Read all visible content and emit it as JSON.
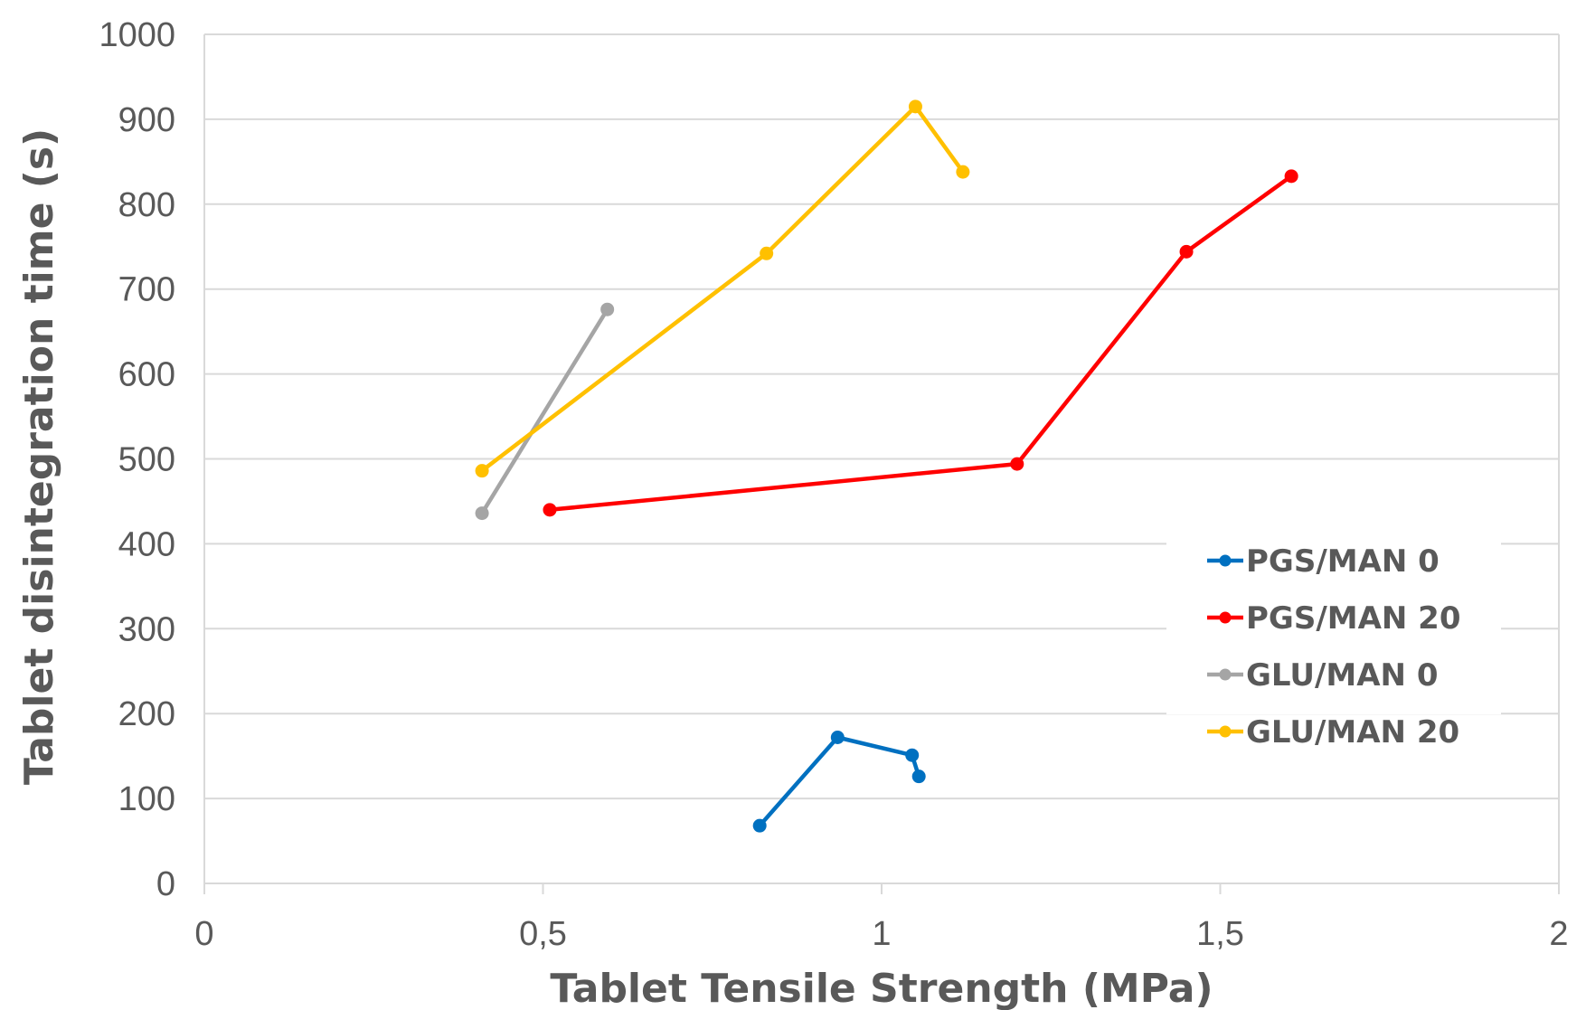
{
  "chart_data": {
    "type": "line",
    "title": "",
    "xlabel": "Tablet Tensile Strength (MPa)",
    "ylabel": "Tablet disintegration time  (s)",
    "xlim": [
      0,
      2
    ],
    "ylim": [
      0,
      1000
    ],
    "xticks": [
      0,
      0.5,
      1,
      1.5,
      2
    ],
    "xtick_labels": [
      "0",
      "0,5",
      "1",
      "1,5",
      "2"
    ],
    "yticks": [
      0,
      100,
      200,
      300,
      400,
      500,
      600,
      700,
      800,
      900,
      1000
    ],
    "ytick_labels": [
      "0",
      "100",
      "200",
      "300",
      "400",
      "500",
      "600",
      "700",
      "800",
      "900",
      "1000"
    ],
    "grid": "horizontal",
    "legend_position": "right",
    "series": [
      {
        "name": "PGS/MAN 0",
        "color": "#0070C0",
        "x": [
          0.82,
          0.935,
          1.045,
          1.055
        ],
        "y": [
          68,
          172,
          151,
          126
        ]
      },
      {
        "name": "PGS/MAN 20",
        "color": "#FF0000",
        "x": [
          0.51,
          1.2,
          1.45,
          1.605
        ],
        "y": [
          440,
          494,
          744,
          833
        ]
      },
      {
        "name": "GLU/MAN 0",
        "color": "#A5A5A5",
        "x": [
          0.41,
          0.595
        ],
        "y": [
          436,
          676
        ]
      },
      {
        "name": "GLU/MAN 20",
        "color": "#FFC000",
        "x": [
          0.41,
          0.83,
          1.05,
          1.12
        ],
        "y": [
          486,
          742,
          915,
          838
        ]
      }
    ]
  }
}
